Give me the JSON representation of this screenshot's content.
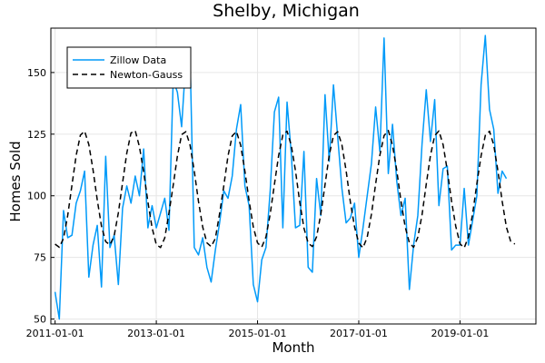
{
  "chart_data": {
    "type": "line",
    "title": "Shelby, Michigan",
    "xlabel": "Month",
    "ylabel": "Homes Sold",
    "x_start": "2011-01",
    "xlim": [
      "2010-12",
      "2020-07"
    ],
    "ylim": [
      48,
      168
    ],
    "xticks": [
      {
        "date": "2011-01",
        "label": "2011-01-01"
      },
      {
        "date": "2013-01",
        "label": "2013-01-01"
      },
      {
        "date": "2015-01",
        "label": "2015-01-01"
      },
      {
        "date": "2017-01",
        "label": "2017-01-01"
      },
      {
        "date": "2019-01",
        "label": "2019-01-01"
      }
    ],
    "yticks": [
      50,
      75,
      100,
      125,
      150
    ],
    "grid": true,
    "legend_position": "top-left",
    "series": [
      {
        "name": "Zillow Data",
        "color": "#009af9",
        "style": "solid",
        "values": [
          61,
          50,
          94,
          83,
          84,
          97,
          102,
          110,
          67,
          80,
          88,
          63,
          116,
          79,
          84,
          64,
          95,
          104,
          97,
          108,
          100,
          119,
          87,
          96,
          87,
          93,
          99,
          86,
          147,
          142,
          128,
          155,
          157,
          79,
          76,
          83,
          71,
          65,
          78,
          89,
          102,
          99,
          108,
          127,
          137,
          104,
          96,
          64,
          57,
          74,
          79,
          102,
          134,
          140,
          87,
          138,
          117,
          87,
          88,
          118,
          71,
          69,
          107,
          92,
          141,
          114,
          145,
          124,
          103,
          89,
          91,
          97,
          75,
          87,
          100,
          113,
          136,
          118,
          164,
          109,
          129,
          106,
          92,
          99,
          62,
          80,
          92,
          121,
          143,
          122,
          139,
          96,
          111,
          112,
          78,
          80,
          80,
          103,
          80,
          90,
          100,
          145,
          165,
          135,
          127,
          101,
          110,
          107
        ]
      },
      {
        "name": "Newton-Gauss",
        "color": "#000000",
        "style": "dashed",
        "values": [
          80.4,
          79.1,
          82.7,
          92.1,
          104.3,
          116.4,
          124.6,
          126.2,
          120.8,
          110.5,
          98.3,
          87.7,
          81.4,
          80.1,
          83.7,
          93.1,
          105.3,
          117.3,
          125.5,
          126.4,
          119.9,
          109.7,
          97.6,
          87.0,
          80.2,
          79.0,
          82.9,
          93.0,
          104.2,
          116.1,
          124.8,
          126.0,
          120.6,
          110.0,
          97.7,
          87.3,
          80.9,
          79.4,
          82.7,
          92.7,
          104.0,
          116.2,
          124.3,
          126.1,
          120.5,
          110.0,
          98.0,
          87.3,
          80.9,
          79.2,
          83.3,
          92.6,
          104.6,
          116.3,
          124.7,
          126.2,
          120.4,
          110.1,
          97.5,
          86.9,
          80.8,
          79.4,
          83.4,
          92.5,
          104.5,
          116.5,
          124.4,
          126.0,
          120.7,
          110.2,
          97.6,
          87.4,
          80.8,
          78.9,
          83.2,
          92.5,
          104.8,
          116.4,
          124.4,
          126.5,
          120.5,
          110.4,
          97.9,
          87.4,
          80.9,
          79.1,
          83.2,
          92.3,
          104.7,
          116.4,
          124.4,
          126.3,
          120.7,
          110.1,
          97.8,
          87.6,
          80.5,
          78.9,
          83.3,
          92.7,
          104.9,
          116.2,
          124.5,
          126.2,
          120.6,
          110.0,
          97.8,
          87.3,
          81.6,
          80.4
        ]
      }
    ]
  }
}
